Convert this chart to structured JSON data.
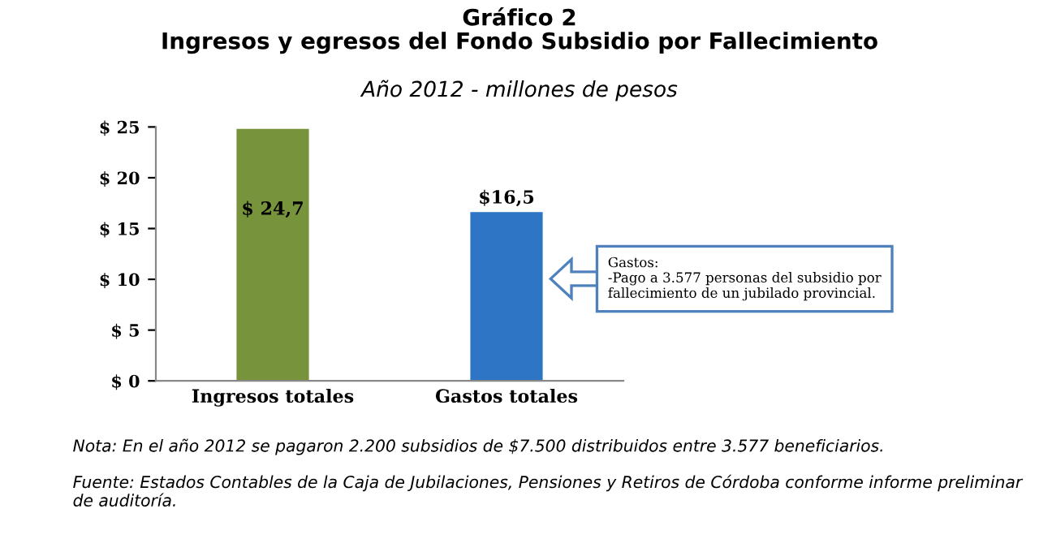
{
  "chart_data": {
    "type": "bar",
    "title": "Gráfico 2\nIngresos y egresos del Fondo Subsidio por Fallecimiento",
    "subtitle": "Año 2012 - millones de pesos",
    "categories": [
      "Ingresos totales",
      "Gastos totales"
    ],
    "values": [
      24.7,
      16.5
    ],
    "colors": [
      "#77933c",
      "#2e75c6"
    ],
    "value_labels": [
      "$ 24,7",
      "$16,5"
    ],
    "ylim": [
      0,
      25
    ],
    "yticks": [
      {
        "value": 0,
        "label": "$ 0"
      },
      {
        "value": 5,
        "label": "$ 5"
      },
      {
        "value": 10,
        "label": "$ 10"
      },
      {
        "value": 15,
        "label": "$ 15"
      },
      {
        "value": 20,
        "label": "$ 20"
      },
      {
        "value": 25,
        "label": "$ 25"
      }
    ],
    "grid": false,
    "annotations": [
      "Gastos:\n-Pago a 3.577 personas del subsidio por\nfallecimiento de un jubilado provincial.",
      "Nota: En el año 2012 se pagaron 2.200 subsidios de $7.500 distribuidos entre 3.577 beneficiarios.",
      "Fuente: Estados Contables de la Caja de Jubilaciones, Pensiones y Retiros de Córdoba conforme informe preliminar de auditoría."
    ]
  }
}
